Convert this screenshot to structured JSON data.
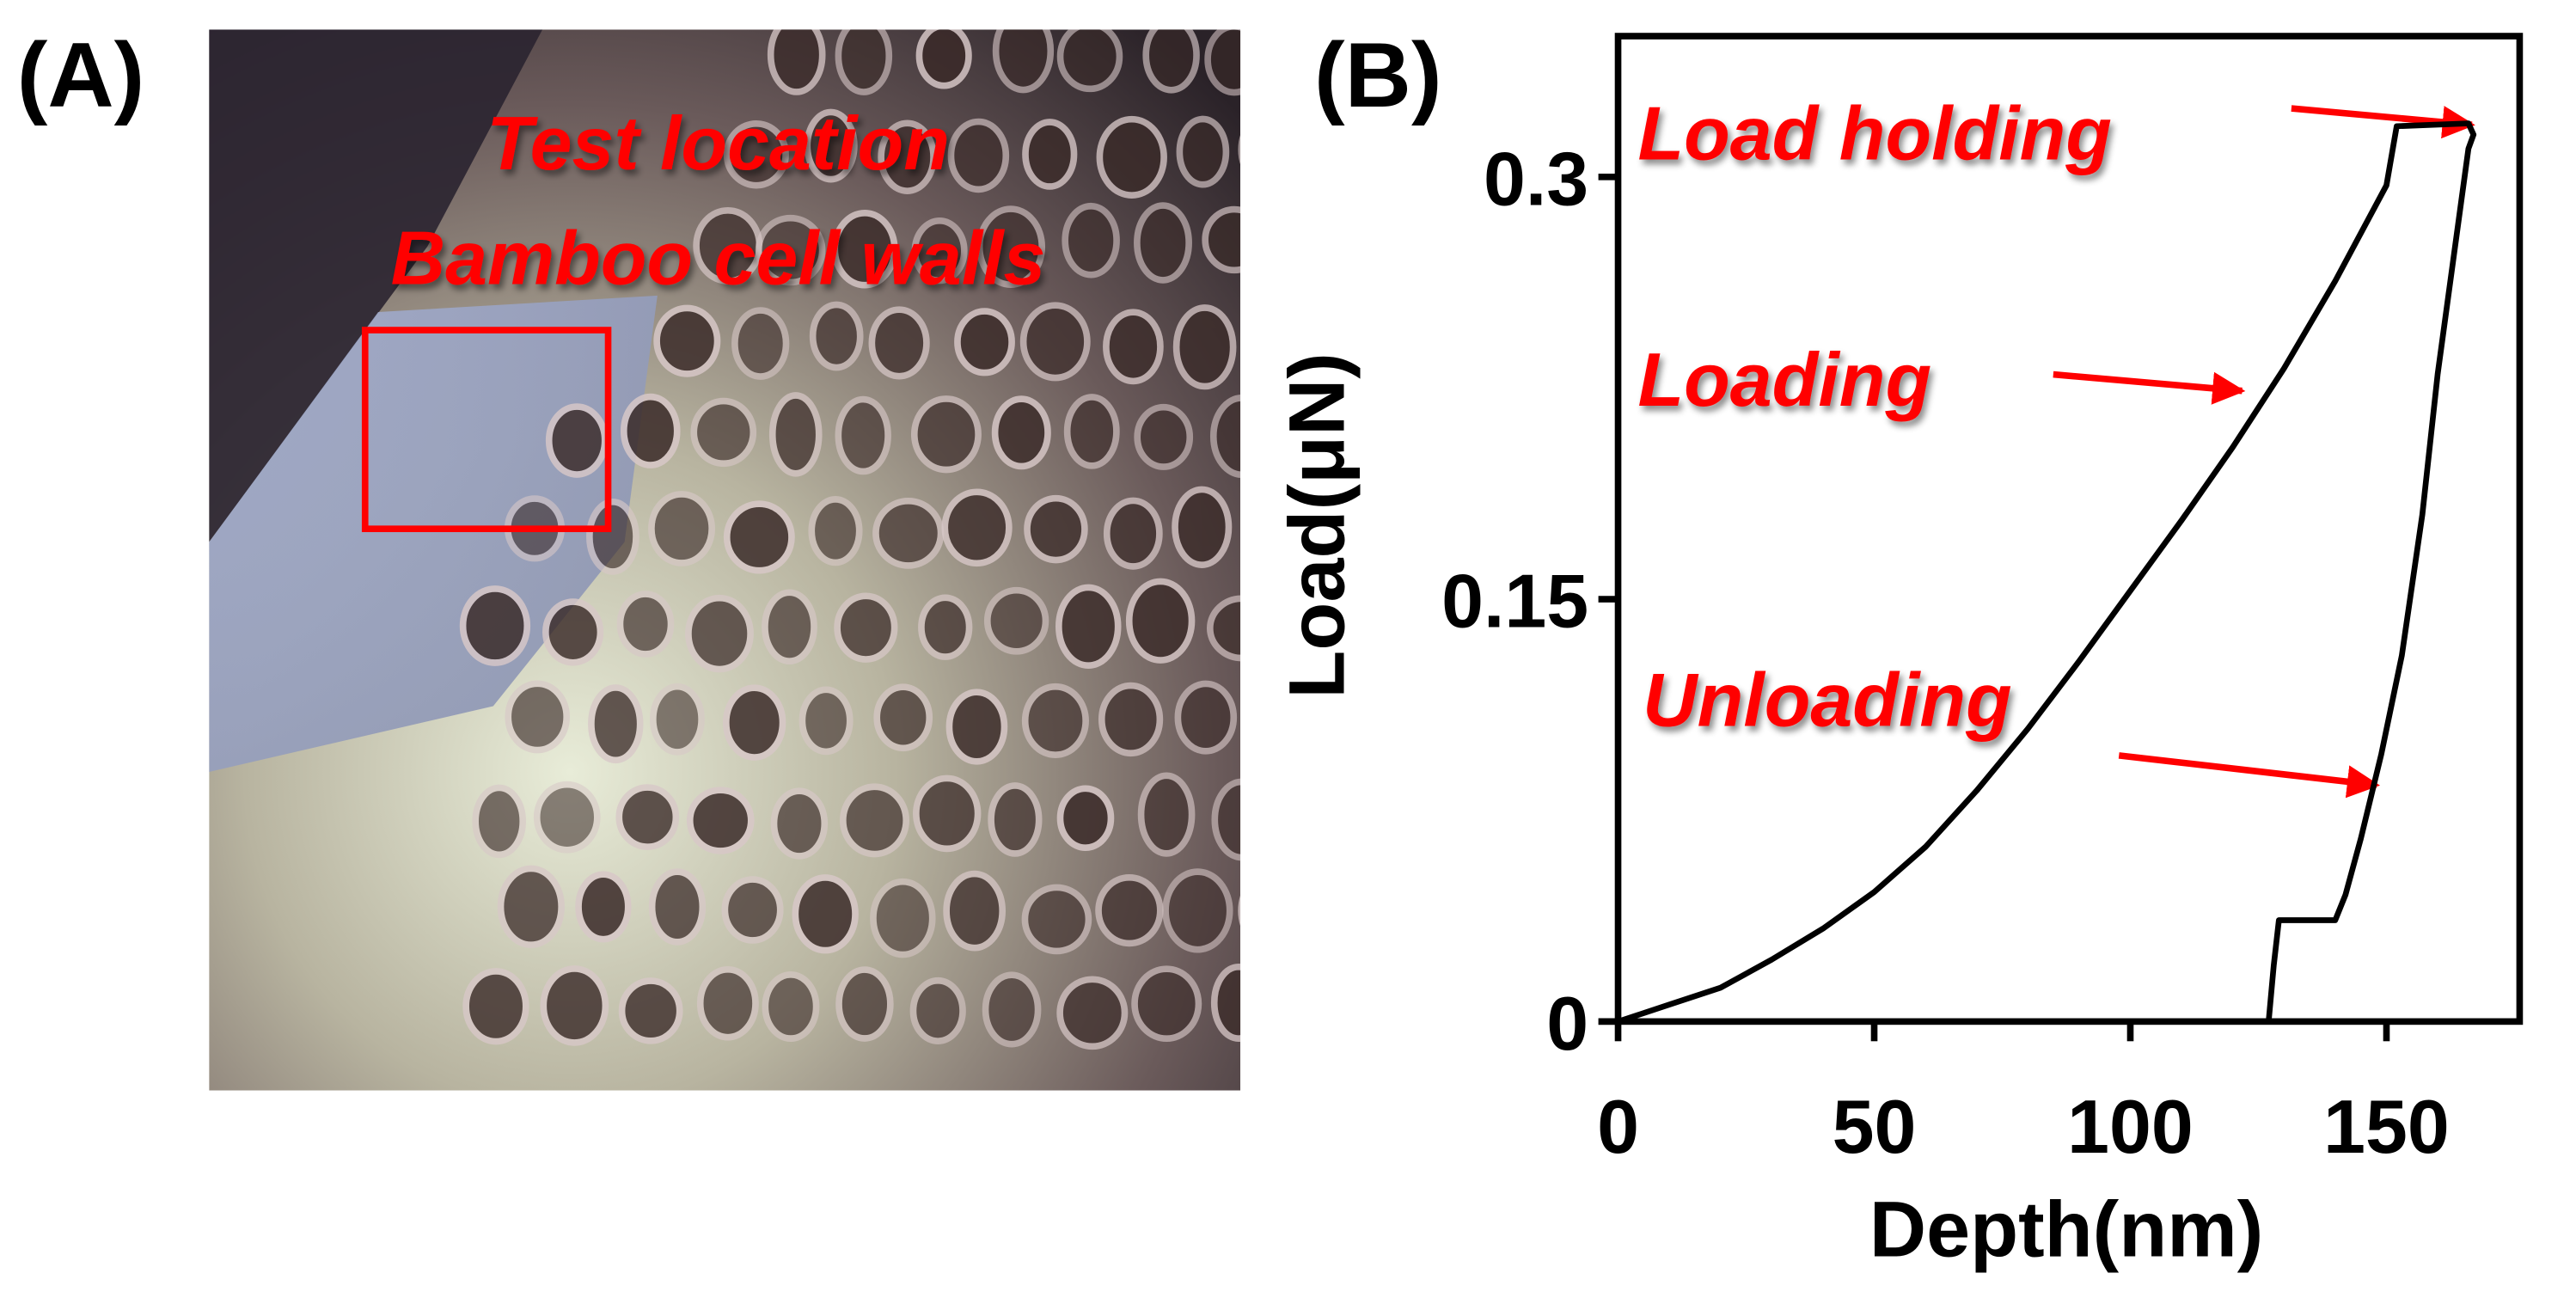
{
  "panel_a": {
    "label": "(A)",
    "caption": [
      "Test location",
      "Bamboo cell walls"
    ]
  },
  "chart_data": {
    "type": "line",
    "panel_label": "(B)",
    "x_label": "Depth(nm)",
    "y_label": "Load(μN)",
    "x": [
      0,
      10,
      20,
      30,
      40,
      50,
      60,
      70,
      80,
      90,
      100,
      110,
      120,
      130,
      140,
      150,
      152,
      166,
      167,
      166,
      163,
      160,
      157,
      153,
      149,
      145,
      142,
      140,
      129,
      128,
      127
    ],
    "values": [
      0,
      0.006,
      0.012,
      0.022,
      0.033,
      0.046,
      0.062,
      0.082,
      0.104,
      0.128,
      0.153,
      0.178,
      0.204,
      0.232,
      0.263,
      0.297,
      0.318,
      0.319,
      0.315,
      0.31,
      0.27,
      0.23,
      0.18,
      0.13,
      0.095,
      0.065,
      0.045,
      0.036,
      0.036,
      0.02,
      0
    ],
    "color": "#000000",
    "xlim": [
      0,
      176
    ],
    "ylim": [
      0,
      0.35
    ],
    "xticks": [
      0,
      50,
      100,
      150
    ],
    "yticks": [
      0,
      0.15,
      0.3
    ],
    "annotations": [
      "Load holding",
      "Loading",
      "Unloading"
    ]
  }
}
